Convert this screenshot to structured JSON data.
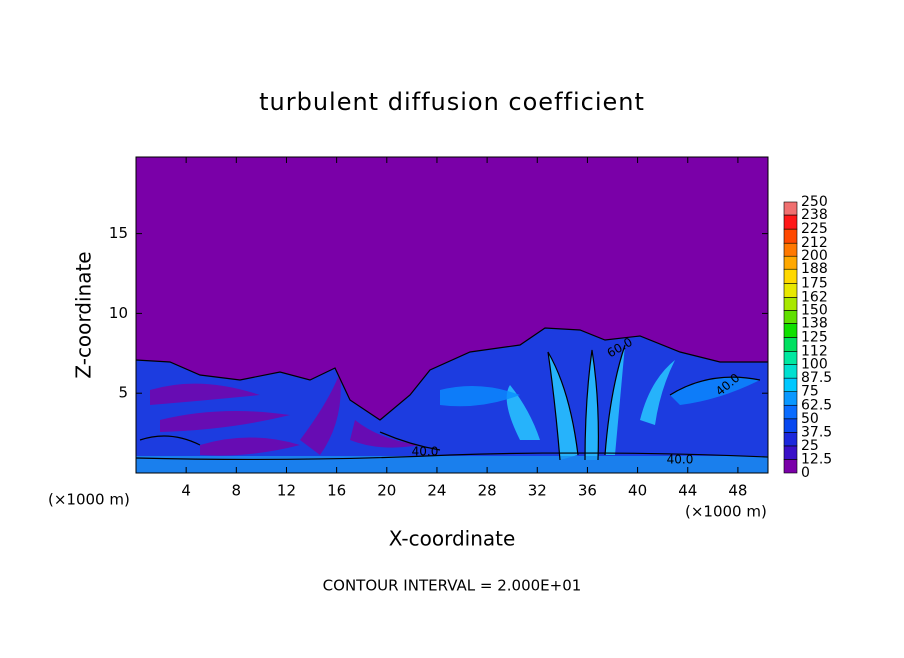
{
  "chart_data": {
    "type": "contour",
    "title": "turbulent diffusion coefficient",
    "x_label": "X-coordinate",
    "y_label": "Z-coordinate",
    "x_unit_label": "(×1000 m)",
    "x_unit_label_right": "(×1000 m)",
    "footer": "CONTOUR INTERVAL = 2.000E+01",
    "xlim": [
      0,
      50.4
    ],
    "xticks": [
      4,
      8,
      12,
      16,
      20,
      24,
      28,
      32,
      36,
      40,
      44,
      48
    ],
    "ylim": [
      0,
      19.8
    ],
    "yticks": [
      5,
      10,
      15
    ],
    "colorbar": {
      "ticks": [
        0,
        12.5,
        25,
        37.5,
        50,
        62.5,
        75,
        87.5,
        100,
        112,
        125,
        138,
        150,
        162,
        175,
        188,
        200,
        212,
        225,
        238,
        250
      ],
      "colors": [
        "#7a00a8",
        "#3a10c8",
        "#1c28dc",
        "#0848f0",
        "#0a6cff",
        "#0a98ff",
        "#00c8ff",
        "#00e0d0",
        "#00e8a0",
        "#00e060",
        "#10e000",
        "#60e000",
        "#a8e800",
        "#e8e800",
        "#ffd800",
        "#ffa800",
        "#ff7800",
        "#ff4800",
        "#ff1818",
        "#f07070"
      ]
    },
    "contour_labels": [
      "40.0",
      "40.0",
      "40.0",
      "60.0"
    ]
  }
}
